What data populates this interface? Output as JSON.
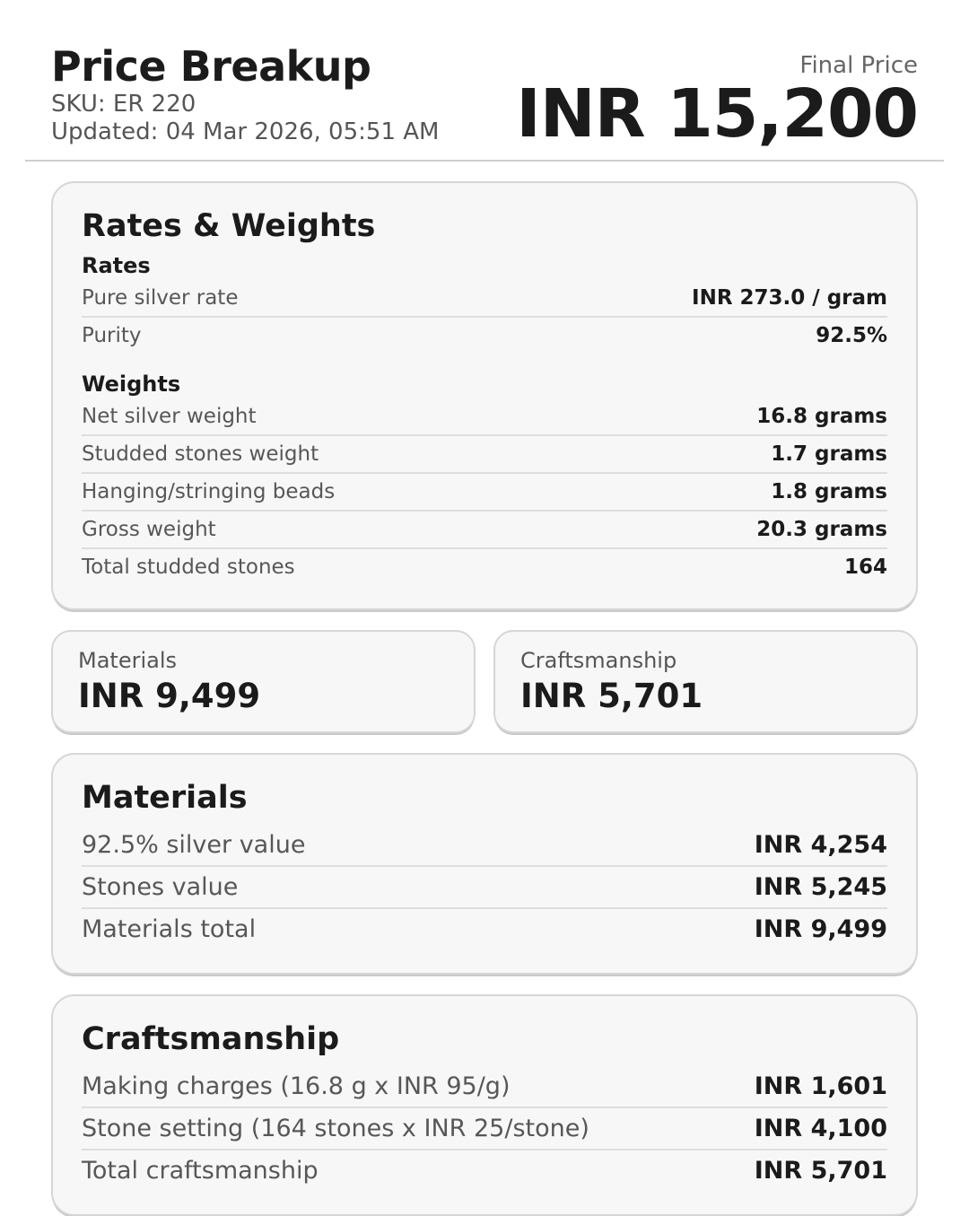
{
  "header": {
    "title": "Price Breakup",
    "sku": "SKU: ER 220",
    "updated": "Updated: 04 Mar 2026, 05:51 AM",
    "final_price_label": "Final Price",
    "final_price_value": "INR 15,200"
  },
  "rates_weights": {
    "heading": "Rates & Weights",
    "sections": [
      {
        "heading": "Rates",
        "rows": [
          {
            "label": "Pure silver rate",
            "value": "INR 273.0 / gram"
          },
          {
            "label": "Purity",
            "value": "92.5%"
          }
        ]
      },
      {
        "heading": "Weights",
        "rows": [
          {
            "label": "Net silver weight",
            "value": "16.8 grams"
          },
          {
            "label": "Studded stones weight",
            "value": "1.7 grams"
          },
          {
            "label": "Hanging/stringing beads",
            "value": "1.8 grams"
          },
          {
            "label": "Gross weight",
            "value": "20.3 grams"
          },
          {
            "label": "Total studded stones",
            "value": "164"
          }
        ]
      }
    ]
  },
  "summary_cards": [
    {
      "label": "Materials",
      "value": "INR 9,499"
    },
    {
      "label": "Craftsmanship",
      "value": "INR 5,701"
    }
  ],
  "materials": {
    "heading": "Materials",
    "rows": [
      {
        "label": "92.5% silver value",
        "value": "INR 4,254"
      },
      {
        "label": "Stones value",
        "value": "INR 5,245"
      },
      {
        "label": "Materials total",
        "value": "INR 9,499"
      }
    ]
  },
  "craftsmanship": {
    "heading": "Craftsmanship",
    "rows": [
      {
        "label": "Making charges (16.8 g x INR 95/g)",
        "value": "INR 1,601"
      },
      {
        "label": "Stone setting (164 stones x INR 25/stone)",
        "value": "INR 4,100"
      },
      {
        "label": "Total craftsmanship",
        "value": "INR 5,701"
      }
    ]
  },
  "colors": {
    "text": "#1b1b1b",
    "muted_label": "#575757",
    "card_background": "#f7f7f7",
    "card_border": "#d6d6d6",
    "divider": "#dedede"
  }
}
